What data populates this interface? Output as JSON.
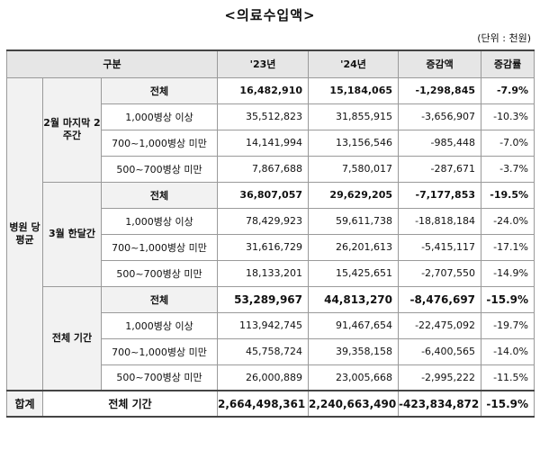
{
  "title": "<의료수입액>",
  "unit_note": "(단위 : 천원)",
  "headers": {
    "category": "구분",
    "y23": "'23년",
    "y24": "'24년",
    "diff": "증감액",
    "rate": "증감률"
  },
  "row_group_label": "병원\n당\n평균",
  "total_label": "합계",
  "groups": [
    {
      "label": "2월\n마지막\n2주간",
      "rows": [
        {
          "sub": "전체",
          "y23": "16,482,910",
          "y24": "15,184,065",
          "diff": "-1,298,845",
          "rate": "-7.9%"
        },
        {
          "sub": "1,000병상 이상",
          "y23": "35,512,823",
          "y24": "31,855,915",
          "diff": "-3,656,907",
          "rate": "-10.3%"
        },
        {
          "sub": "700~1,000병상 미만",
          "y23": "14,141,994",
          "y24": "13,156,546",
          "diff": "-985,448",
          "rate": "-7.0%"
        },
        {
          "sub": "500~700병상 미만",
          "y23": "7,867,688",
          "y24": "7,580,017",
          "diff": "-287,671",
          "rate": "-3.7%"
        }
      ]
    },
    {
      "label": "3월\n한달간",
      "rows": [
        {
          "sub": "전체",
          "y23": "36,807,057",
          "y24": "29,629,205",
          "diff": "-7,177,853",
          "rate": "-19.5%"
        },
        {
          "sub": "1,000병상 이상",
          "y23": "78,429,923",
          "y24": "59,611,738",
          "diff": "-18,818,184",
          "rate": "-24.0%"
        },
        {
          "sub": "700~1,000병상 미만",
          "y23": "31,616,729",
          "y24": "26,201,613",
          "diff": "-5,415,117",
          "rate": "-17.1%"
        },
        {
          "sub": "500~700병상 미만",
          "y23": "18,133,201",
          "y24": "15,425,651",
          "diff": "-2,707,550",
          "rate": "-14.9%"
        }
      ]
    },
    {
      "label": "전체\n기간",
      "rows": [
        {
          "sub": "전체",
          "y23": "53,289,967",
          "y24": "44,813,270",
          "diff": "-8,476,697",
          "rate": "-15.9%"
        },
        {
          "sub": "1,000병상 이상",
          "y23": "113,942,745",
          "y24": "91,467,654",
          "diff": "-22,475,092",
          "rate": "-19.7%"
        },
        {
          "sub": "700~1,000병상 미만",
          "y23": "45,758,724",
          "y24": "39,358,158",
          "diff": "-6,400,565",
          "rate": "-14.0%"
        },
        {
          "sub": "500~700병상 미만",
          "y23": "26,000,889",
          "y24": "23,005,668",
          "diff": "-2,995,222",
          "rate": "-11.5%"
        }
      ]
    }
  ],
  "total": {
    "sub": "전체 기간",
    "y23": "2,664,498,361",
    "y24": "2,240,663,490",
    "diff": "-423,834,872",
    "rate": "-15.9%"
  }
}
